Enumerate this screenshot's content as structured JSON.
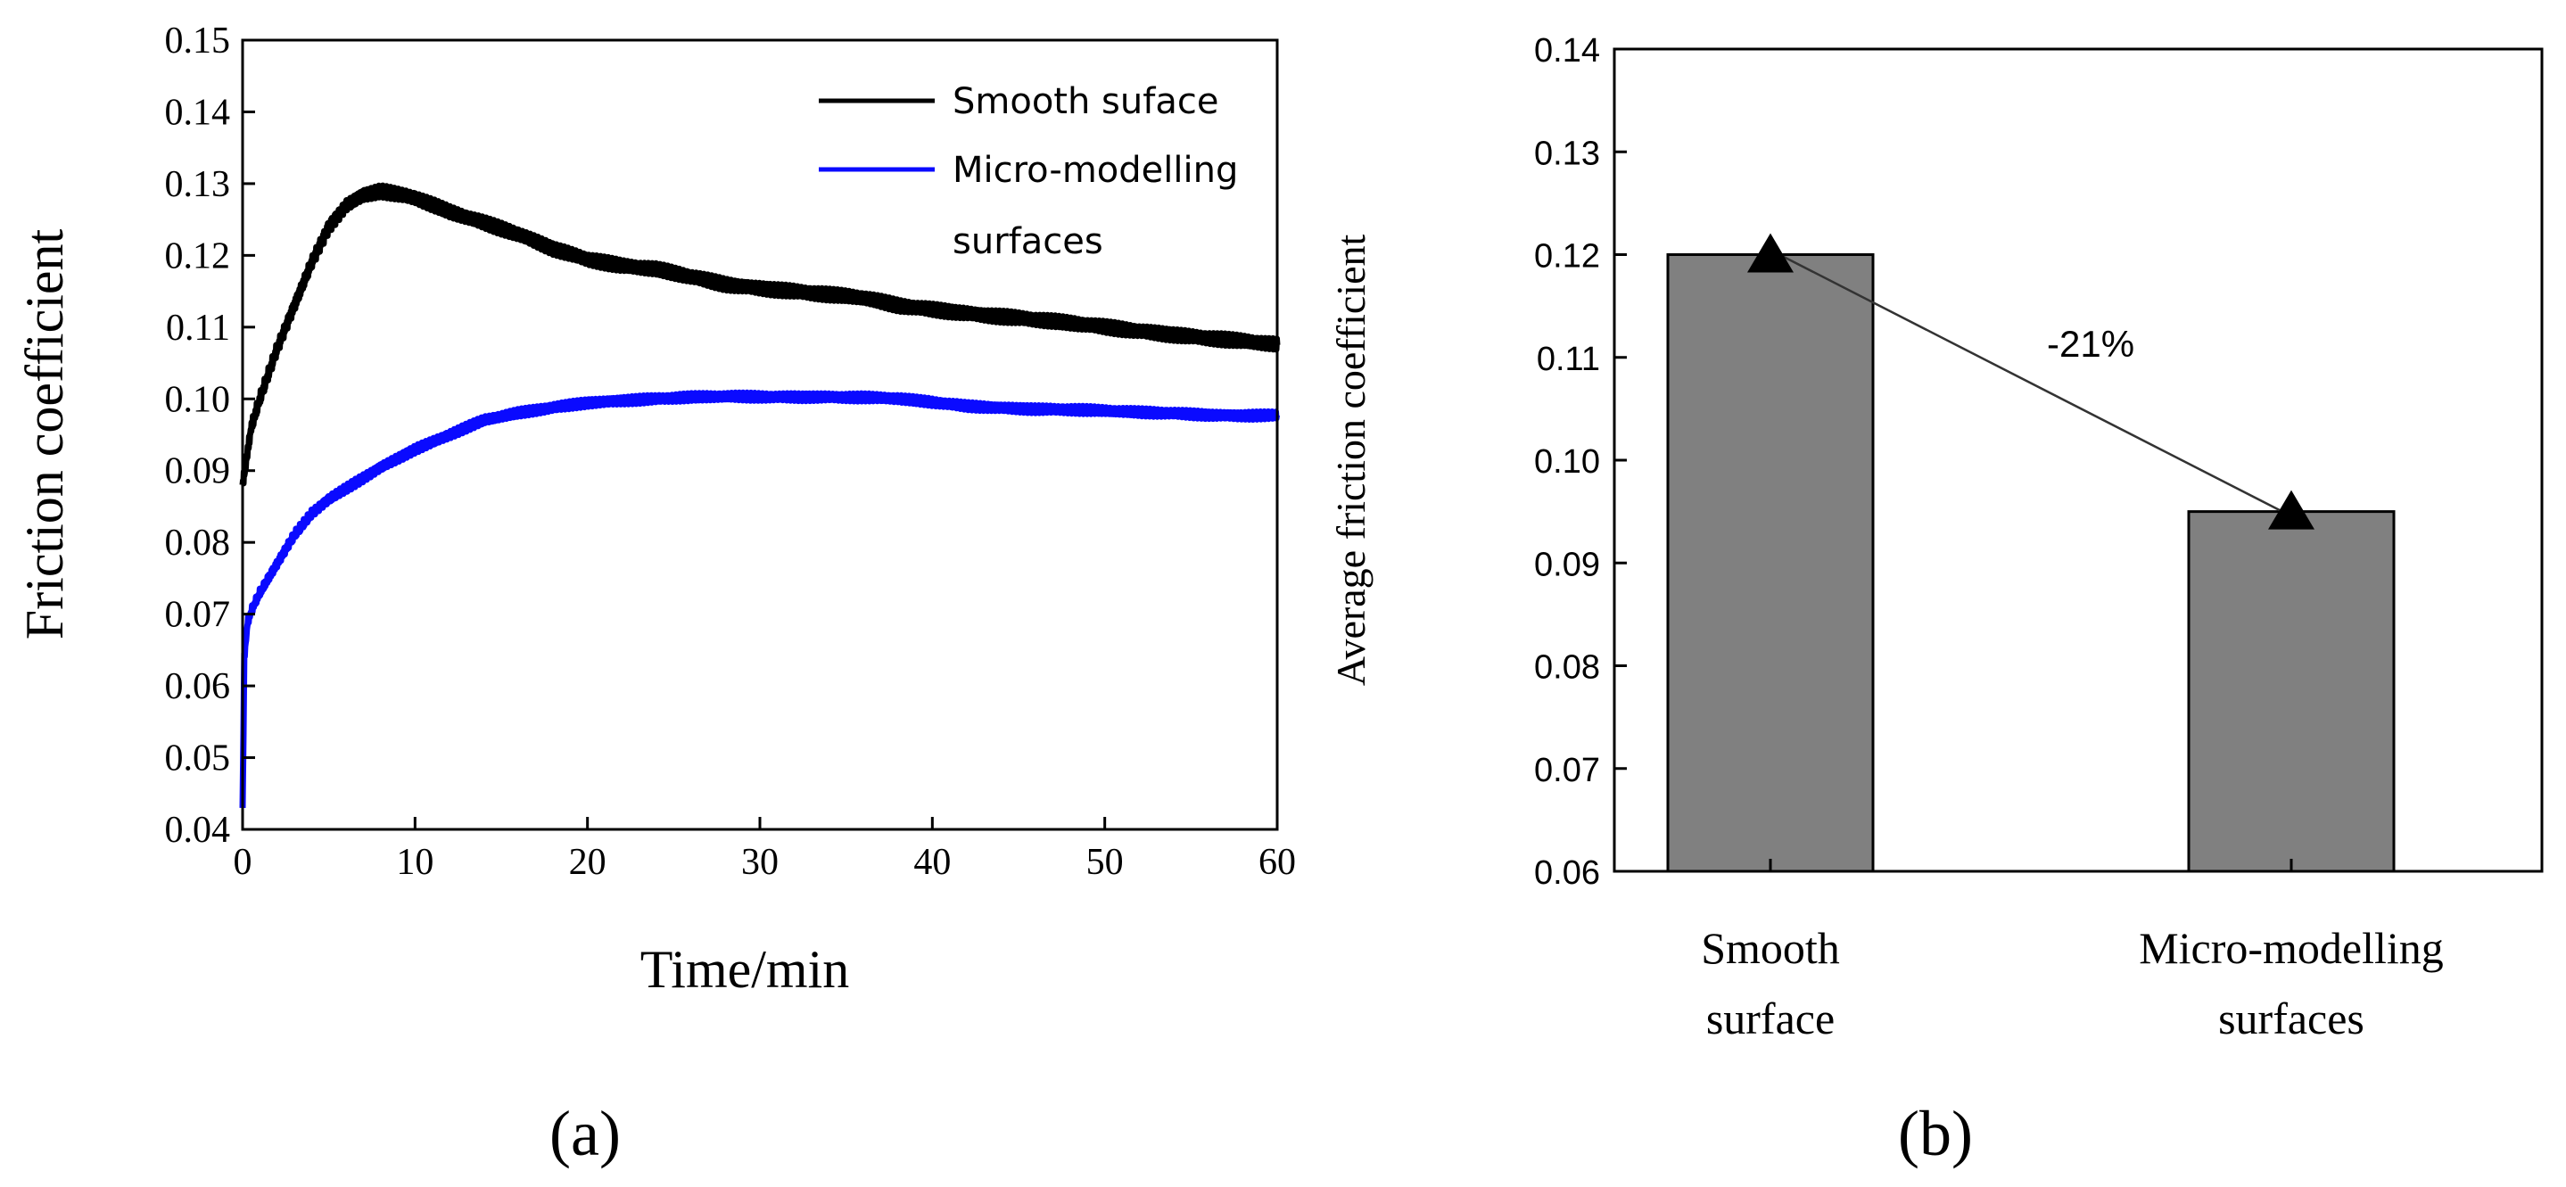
{
  "chart_data": [
    {
      "panel": "(a)",
      "type": "line",
      "xlabel": "Time/min",
      "ylabel": "Friction coefficient",
      "xlim": [
        0,
        60
      ],
      "ylim": [
        0.04,
        0.15
      ],
      "xticks": [
        "0",
        "10",
        "20",
        "30",
        "40",
        "50",
        "60"
      ],
      "yticks": [
        "0.04",
        "0.05",
        "0.06",
        "0.07",
        "0.08",
        "0.09",
        "0.10",
        "0.11",
        "0.12",
        "0.13",
        "0.14",
        "0.15"
      ],
      "grid": false,
      "legend_position": "top-right",
      "series": [
        {
          "name": "Smooth suface",
          "color": "#000000",
          "x": [
            0,
            0.5,
            1,
            2,
            3,
            4,
            5,
            6,
            7,
            8,
            9,
            10,
            12,
            14,
            16,
            18,
            20,
            22,
            24,
            26,
            28,
            30,
            32,
            34,
            36,
            38,
            40,
            42,
            44,
            46,
            48,
            50,
            52,
            54,
            56,
            58,
            60
          ],
          "values": [
            0.088,
            0.096,
            0.1,
            0.107,
            0.113,
            0.119,
            0.124,
            0.127,
            0.1285,
            0.129,
            0.1285,
            0.128,
            0.126,
            0.1245,
            0.123,
            0.121,
            0.1195,
            0.1185,
            0.118,
            0.117,
            0.116,
            0.1155,
            0.115,
            0.1145,
            0.114,
            0.113,
            0.1125,
            0.112,
            0.1115,
            0.111,
            0.1105,
            0.11,
            0.1095,
            0.109,
            0.1085,
            0.108,
            0.1075
          ]
        },
        {
          "name": "Micro-modelling surfaces",
          "color": "#0a0aff",
          "x": [
            0,
            0.1,
            0.3,
            0.6,
            1,
            2,
            3,
            4,
            5,
            6,
            7,
            8,
            10,
            12,
            14,
            16,
            18,
            20,
            22,
            24,
            26,
            28,
            30,
            32,
            34,
            36,
            38,
            40,
            42,
            44,
            46,
            48,
            50,
            52,
            54,
            56,
            58,
            60
          ],
          "values": [
            0.043,
            0.064,
            0.069,
            0.071,
            0.073,
            0.077,
            0.081,
            0.084,
            0.086,
            0.0875,
            0.089,
            0.0905,
            0.093,
            0.095,
            0.097,
            0.098,
            0.0988,
            0.0995,
            0.0998,
            0.1,
            0.1002,
            0.1003,
            0.1003,
            0.1003,
            0.1003,
            0.1002,
            0.1,
            0.0995,
            0.099,
            0.0988,
            0.0986,
            0.0985,
            0.0983,
            0.0981,
            0.098,
            0.0978,
            0.0977,
            0.0977
          ]
        }
      ]
    },
    {
      "panel": "(b)",
      "type": "bar",
      "categories": [
        [
          "Smooth",
          "surface"
        ],
        [
          "Micro-modelling",
          "surfaces"
        ]
      ],
      "values": [
        0.12,
        0.095
      ],
      "ylabel": "Average friction coefficient",
      "xlabel": "",
      "ylim": [
        0.06,
        0.14
      ],
      "yticks": [
        "0.06",
        "0.07",
        "0.08",
        "0.09",
        "0.10",
        "0.11",
        "0.12",
        "0.13",
        "0.14"
      ],
      "bar_color": "#808080",
      "marker": "triangle",
      "annotation": "-21%",
      "grid": false
    }
  ],
  "panel_labels": [
    "(a)",
    "(b)"
  ]
}
